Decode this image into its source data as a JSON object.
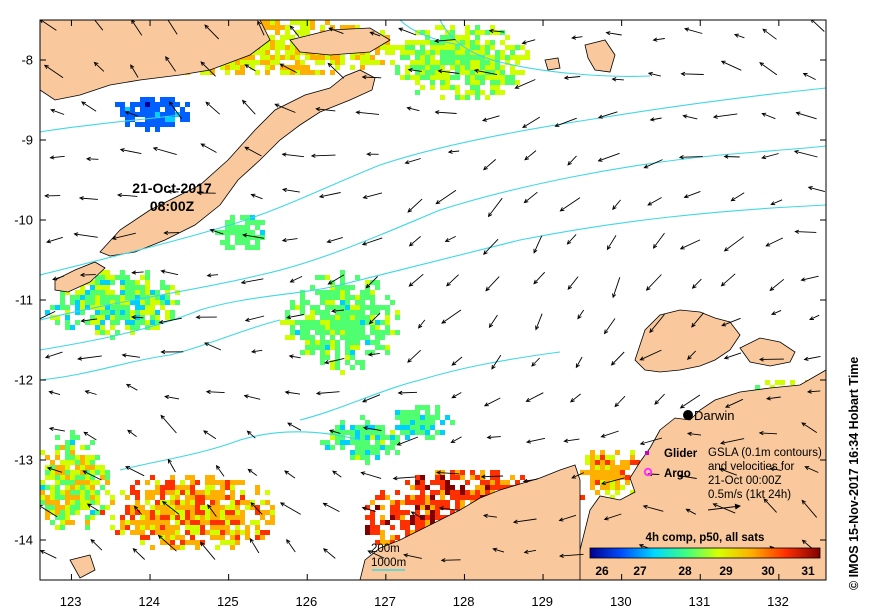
{
  "map": {
    "lon_range": [
      122.6,
      132.6
    ],
    "lat_range": [
      -14.5,
      -7.5
    ],
    "x_ticks": [
      "123",
      "124",
      "125",
      "126",
      "127",
      "128",
      "129",
      "130",
      "131",
      "132"
    ],
    "y_ticks": [
      "-8",
      "-9",
      "-10",
      "-11",
      "-12",
      "-13",
      "-14"
    ],
    "timestamp_line1": "21-Oct-2017",
    "timestamp_line2": "08:00Z",
    "place_darwin": "Darwin",
    "legend_glider": "Glider",
    "legend_argo": "Argo",
    "gsla_note": [
      "GSLA (0.1m contours)",
      "and velocities for",
      "21-Oct 00:00Z",
      "0.5m/s (1kt 24h)"
    ],
    "contour_200": "200m",
    "contour_1000": "1000m",
    "composite_label": "4h comp, p50, all sats",
    "colorbar_ticks": [
      "26",
      "27",
      "28",
      "29",
      "30",
      "31"
    ],
    "colorbar_range": [
      25.5,
      31.5
    ],
    "credit": "© IMOS 15-Nov-2017 16:34 Hobart Time"
  },
  "colors": {
    "land": "#f9c99d",
    "contour": "#3fd8e4",
    "glider": "#cc00cc",
    "argo": "#ff33ff",
    "colorbar": [
      "#00008f",
      "#0060ff",
      "#00d0ff",
      "#50ff70",
      "#d0ff00",
      "#ffb000",
      "#ff3000",
      "#800000"
    ]
  },
  "icons": {
    "glider_marker": "square-marker",
    "argo_marker": "circle-marker",
    "city_marker": "black-dot"
  }
}
